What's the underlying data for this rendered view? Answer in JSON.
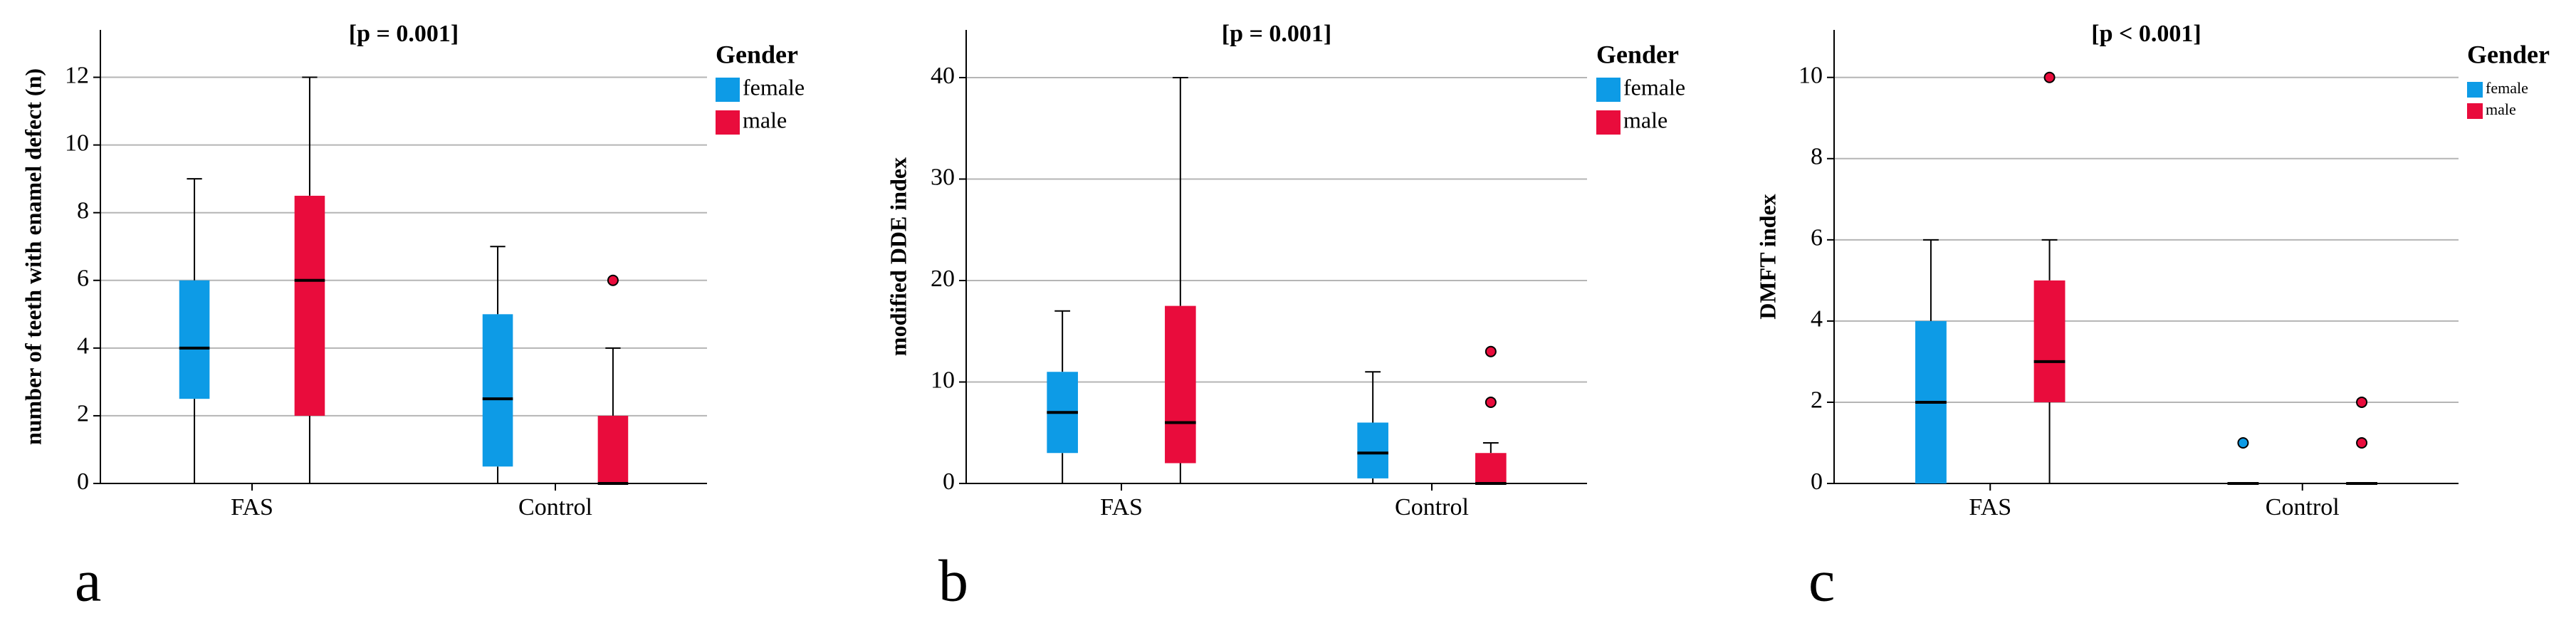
{
  "chart_data": [
    {
      "type": "box",
      "panel": "a",
      "title": "[p = 0.001]",
      "y_label": "number of teeth with enamel defect (n)",
      "categories": [
        "FAS",
        "Control"
      ],
      "ylim": [
        0,
        13.4
      ],
      "yticks": [
        0,
        2,
        4,
        6,
        8,
        10,
        12
      ],
      "grid": true,
      "legend_title": "Gender",
      "series": [
        {
          "name": "female",
          "color": "#0d9be6",
          "boxes": [
            {
              "min": 0,
              "q1": 2.5,
              "median": 4,
              "q3": 6,
              "max": 9,
              "outliers": []
            },
            {
              "min": 0,
              "q1": 0.5,
              "median": 2.5,
              "q3": 5,
              "max": 7,
              "outliers": []
            }
          ]
        },
        {
          "name": "male",
          "color": "#e90c3c",
          "boxes": [
            {
              "min": 0,
              "q1": 2,
              "median": 6,
              "q3": 8.5,
              "max": 12,
              "outliers": []
            },
            {
              "min": 0,
              "q1": 0,
              "median": 0,
              "q3": 2,
              "max": 4,
              "outliers": [
                6
              ]
            }
          ]
        }
      ]
    },
    {
      "type": "box",
      "panel": "b",
      "title": "[p = 0.001]",
      "y_label": "modified DDE index",
      "categories": [
        "FAS",
        "Control"
      ],
      "ylim": [
        0,
        44.7
      ],
      "yticks": [
        0,
        10,
        20,
        30,
        40
      ],
      "grid": true,
      "legend_title": "Gender",
      "series": [
        {
          "name": "female",
          "color": "#0d9be6",
          "boxes": [
            {
              "min": 0,
              "q1": 3,
              "median": 7,
              "q3": 11,
              "max": 17,
              "outliers": []
            },
            {
              "min": 0,
              "q1": 0.5,
              "median": 3,
              "q3": 6,
              "max": 11,
              "outliers": []
            }
          ]
        },
        {
          "name": "male",
          "color": "#e90c3c",
          "boxes": [
            {
              "min": 0,
              "q1": 2,
              "median": 6,
              "q3": 17.5,
              "max": 40,
              "outliers": []
            },
            {
              "min": 0,
              "q1": 0,
              "median": 0,
              "q3": 3,
              "max": 4,
              "outliers": [
                8,
                13
              ]
            }
          ]
        }
      ]
    },
    {
      "type": "box",
      "panel": "c",
      "title": "[p < 0.001]",
      "y_label": "DMFT index",
      "categories": [
        "FAS",
        "Control"
      ],
      "ylim": [
        0,
        11.17
      ],
      "yticks": [
        0,
        2,
        4,
        6,
        8,
        10
      ],
      "grid": true,
      "legend_title": "Gender",
      "series": [
        {
          "name": "female",
          "color": "#0d9be6",
          "boxes": [
            {
              "min": 0,
              "q1": 0,
              "median": 2,
              "q3": 4,
              "max": 6,
              "outliers": []
            },
            {
              "min": 0,
              "q1": 0,
              "median": 0,
              "q3": 0,
              "max": 0,
              "outliers": [
                1
              ]
            }
          ]
        },
        {
          "name": "male",
          "color": "#e90c3c",
          "boxes": [
            {
              "min": 0,
              "q1": 2,
              "median": 3,
              "q3": 5,
              "max": 6,
              "outliers": [
                10
              ]
            },
            {
              "min": 0,
              "q1": 0,
              "median": 0,
              "q3": 0,
              "max": 0,
              "outliers": [
                1,
                2
              ]
            }
          ]
        }
      ]
    }
  ]
}
